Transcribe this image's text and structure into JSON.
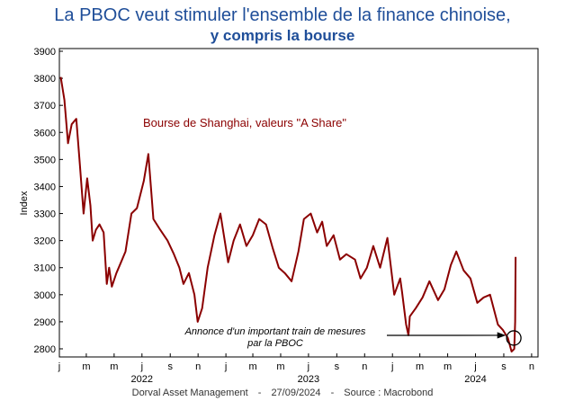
{
  "title": "La PBOC veut stimuler l'ensemble de la finance chinoise,",
  "subtitle": "y compris la bourse",
  "footer": {
    "source_org": "Dorval Asset Management",
    "sep1": "-",
    "date": "27/09/2024",
    "sep2": "-",
    "source": "Source : Macrobond"
  },
  "colors": {
    "title": "#1f4e99",
    "series": "#8b0000",
    "axis": "#000000"
  },
  "chart_data": {
    "type": "line",
    "title": "La PBOC veut stimuler l'ensemble de la finance chinoise, y compris la bourse",
    "ylabel": "Index",
    "xlabel": "",
    "ylim": [
      2770,
      3910
    ],
    "yticks": [
      2800,
      2900,
      3000,
      3100,
      3200,
      3300,
      3400,
      3500,
      3600,
      3700,
      3800,
      3900
    ],
    "xlim": [
      "2022-01-01",
      "2024-11-15"
    ],
    "month_ticks": [
      "j",
      "m",
      "m",
      "j",
      "s",
      "n",
      "j",
      "m",
      "m",
      "j",
      "s",
      "n",
      "j",
      "m",
      "m",
      "j",
      "s",
      "n"
    ],
    "year_labels": [
      "2022",
      "2023",
      "2024"
    ],
    "grid": false,
    "series": [
      {
        "name": "Bourse de Shanghai, valeurs \"A Share\"",
        "x": [
          "2022-01-04",
          "2022-01-12",
          "2022-01-20",
          "2022-01-28",
          "2022-02-07",
          "2022-02-15",
          "2022-02-23",
          "2022-03-03",
          "2022-03-10",
          "2022-03-15",
          "2022-03-22",
          "2022-03-30",
          "2022-04-08",
          "2022-04-15",
          "2022-04-20",
          "2022-04-26",
          "2022-05-06",
          "2022-05-16",
          "2022-05-26",
          "2022-06-08",
          "2022-06-20",
          "2022-07-05",
          "2022-07-15",
          "2022-07-26",
          "2022-08-10",
          "2022-08-26",
          "2022-09-09",
          "2022-09-21",
          "2022-09-30",
          "2022-10-12",
          "2022-10-24",
          "2022-10-31",
          "2022-11-10",
          "2022-11-22",
          "2022-12-07",
          "2022-12-20",
          "2023-01-06",
          "2023-01-18",
          "2023-02-01",
          "2023-02-15",
          "2023-03-01",
          "2023-03-15",
          "2023-03-30",
          "2023-04-14",
          "2023-04-27",
          "2023-05-10",
          "2023-05-25",
          "2023-06-09",
          "2023-06-21",
          "2023-07-06",
          "2023-07-20",
          "2023-07-31",
          "2023-08-10",
          "2023-08-25",
          "2023-09-08",
          "2023-09-22",
          "2023-10-11",
          "2023-10-23",
          "2023-11-06",
          "2023-11-20",
          "2023-12-05",
          "2023-12-21",
          "2024-01-05",
          "2024-01-18",
          "2024-01-22",
          "2024-01-31",
          "2024-02-05",
          "2024-02-08",
          "2024-02-21",
          "2024-03-07",
          "2024-03-22",
          "2024-04-10",
          "2024-04-24",
          "2024-05-08",
          "2024-05-20",
          "2024-06-05",
          "2024-06-20",
          "2024-07-05",
          "2024-07-19",
          "2024-08-02",
          "2024-08-19",
          "2024-08-30",
          "2024-09-10",
          "2024-09-18",
          "2024-09-24",
          "2024-09-26",
          "2024-09-27"
        ],
        "values": [
          3805,
          3720,
          3560,
          3630,
          3650,
          3480,
          3300,
          3430,
          3330,
          3200,
          3240,
          3260,
          3230,
          3040,
          3100,
          3030,
          3080,
          3120,
          3160,
          3300,
          3320,
          3420,
          3520,
          3280,
          3240,
          3200,
          3150,
          3100,
          3040,
          3080,
          3000,
          2900,
          2950,
          3100,
          3220,
          3300,
          3120,
          3200,
          3260,
          3180,
          3220,
          3280,
          3260,
          3170,
          3100,
          3080,
          3050,
          3160,
          3280,
          3300,
          3230,
          3270,
          3180,
          3220,
          3130,
          3150,
          3130,
          3060,
          3100,
          3180,
          3100,
          3210,
          3000,
          3060,
          3010,
          2890,
          2850,
          2920,
          2950,
          2990,
          3050,
          2980,
          3020,
          3110,
          3160,
          3090,
          3060,
          2970,
          2990,
          3000,
          2890,
          2870,
          2840,
          2790,
          2800,
          2900,
          3140
        ]
      }
    ],
    "annotations": [
      {
        "text": "Bourse de Shanghai, valeurs \"A Share\""
      },
      {
        "text": "Annonce d'un important train de mesures",
        "text2": "par la PBOC",
        "points_to": [
          "2024-09-19",
          2840
        ]
      }
    ]
  }
}
